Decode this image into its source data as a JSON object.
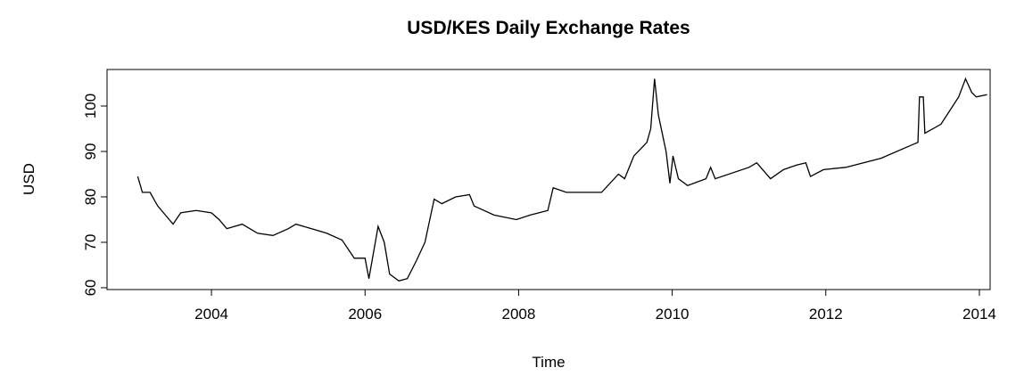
{
  "chart_data": {
    "type": "line",
    "title": "USD/KES Daily Exchange Rates",
    "x_label": "Time",
    "y_label": "USD",
    "x": [
      2003.04,
      2003.1,
      2003.2,
      2003.3,
      2003.4,
      2003.5,
      2003.6,
      2003.8,
      2004.0,
      2004.1,
      2004.2,
      2004.4,
      2004.6,
      2004.8,
      2005.0,
      2005.1,
      2005.3,
      2005.5,
      2005.7,
      2005.86,
      2006.0,
      2006.05,
      2006.17,
      2006.25,
      2006.32,
      2006.44,
      2006.55,
      2006.67,
      2006.78,
      2006.9,
      2007.0,
      2007.18,
      2007.36,
      2007.42,
      2007.68,
      2007.97,
      2008.15,
      2008.38,
      2008.45,
      2008.62,
      2009.08,
      2009.3,
      2009.38,
      2009.5,
      2009.67,
      2009.72,
      2009.77,
      2009.82,
      2009.92,
      2009.97,
      2010.01,
      2010.08,
      2010.2,
      2010.44,
      2010.5,
      2010.56,
      2011.0,
      2011.1,
      2011.28,
      2011.45,
      2011.62,
      2011.74,
      2011.8,
      2011.97,
      2012.26,
      2012.72,
      2013.13,
      2013.2,
      2013.22,
      2013.27,
      2013.29,
      2013.5,
      2013.73,
      2013.82,
      2013.9,
      2013.96,
      2014.1
    ],
    "series": [
      {
        "name": "USD",
        "color": "#000000",
        "values": [
          84.5,
          81,
          81,
          78,
          76,
          74,
          76.5,
          77,
          76.5,
          75,
          73,
          74,
          72,
          71.5,
          73,
          74,
          73,
          72,
          70.5,
          66.5,
          66.5,
          62,
          73.5,
          70,
          63,
          61.5,
          62,
          66,
          70,
          79.5,
          78.5,
          80,
          80.5,
          78,
          76,
          75,
          76,
          77,
          82,
          81,
          81,
          85,
          84,
          89,
          92,
          95,
          106,
          98,
          90,
          83,
          89,
          84,
          82.5,
          84,
          86.5,
          84,
          86.5,
          87.5,
          84,
          86,
          87,
          87.5,
          84.5,
          86,
          86.5,
          88.5,
          91.5,
          92,
          102,
          102,
          94,
          96,
          102,
          106,
          103,
          102,
          102.5
        ]
      }
    ],
    "xlim": [
      2002.64,
      2014.14
    ],
    "ylim": [
      59.6,
      108.04
    ],
    "xticks": [
      2004,
      2006,
      2008,
      2010,
      2012,
      2014
    ],
    "yticks": [
      60,
      70,
      80,
      90,
      100
    ]
  }
}
